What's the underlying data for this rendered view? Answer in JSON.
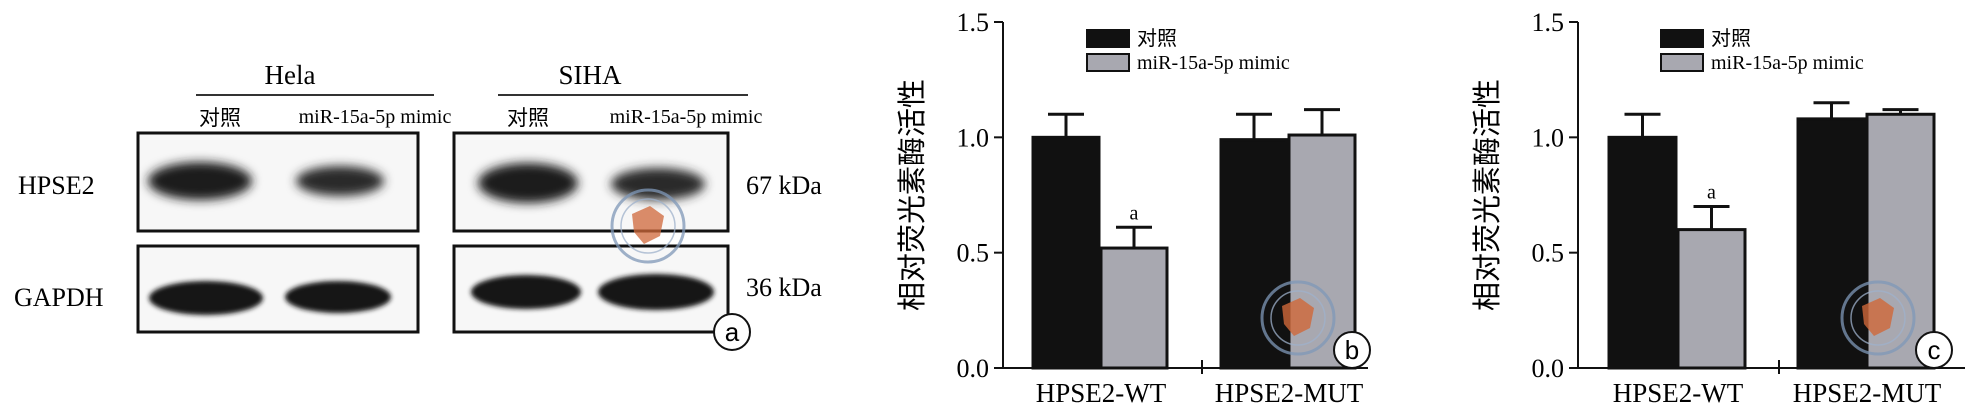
{
  "blot": {
    "groups": [
      {
        "name": "Hela",
        "lanes": [
          "对照",
          "miR-15a-5p mimic"
        ]
      },
      {
        "name": "SIHA",
        "lanes": [
          "对照",
          "miR-15a-5p mimic"
        ]
      }
    ],
    "proteins": [
      {
        "name": "HPSE2",
        "size": "67 kDa"
      },
      {
        "name": "GAPDH",
        "size": "36 kDa"
      }
    ],
    "panel_label": "a"
  },
  "chart_data": [
    {
      "type": "bar",
      "panel_label": "b",
      "categories": [
        "HPSE2-WT",
        "HPSE2-MUT"
      ],
      "ylabel": "相对荧光素酶活性",
      "ylim": [
        0,
        1.5
      ],
      "yticks": [
        "0.0",
        "0.5",
        "1.0",
        "1.5"
      ],
      "legend_position": "top",
      "series": [
        {
          "name": "对照",
          "color": "#111111",
          "values": [
            1.0,
            0.99
          ],
          "errors": [
            0.1,
            0.11
          ]
        },
        {
          "name": "miR-15a-5p mimic",
          "color": "#a8a8b0",
          "values": [
            0.52,
            1.01
          ],
          "errors": [
            0.09,
            0.11
          ]
        }
      ],
      "annotations": [
        {
          "series": 1,
          "category": 0,
          "text": "a"
        }
      ]
    },
    {
      "type": "bar",
      "panel_label": "c",
      "categories": [
        "HPSE2-WT",
        "HPSE2-MUT"
      ],
      "ylabel": "相对荧光素酶活性",
      "ylim": [
        0,
        1.5
      ],
      "yticks": [
        "0.0",
        "0.5",
        "1.0",
        "1.5"
      ],
      "legend_position": "top",
      "series": [
        {
          "name": "对照",
          "color": "#111111",
          "values": [
            1.0,
            1.08
          ],
          "errors": [
            0.1,
            0.07
          ]
        },
        {
          "name": "miR-15a-5p mimic",
          "color": "#a8a8b0",
          "values": [
            0.6,
            1.1
          ],
          "errors": [
            0.1,
            0.02
          ]
        }
      ],
      "annotations": [
        {
          "series": 1,
          "category": 0,
          "text": "a"
        }
      ]
    }
  ]
}
